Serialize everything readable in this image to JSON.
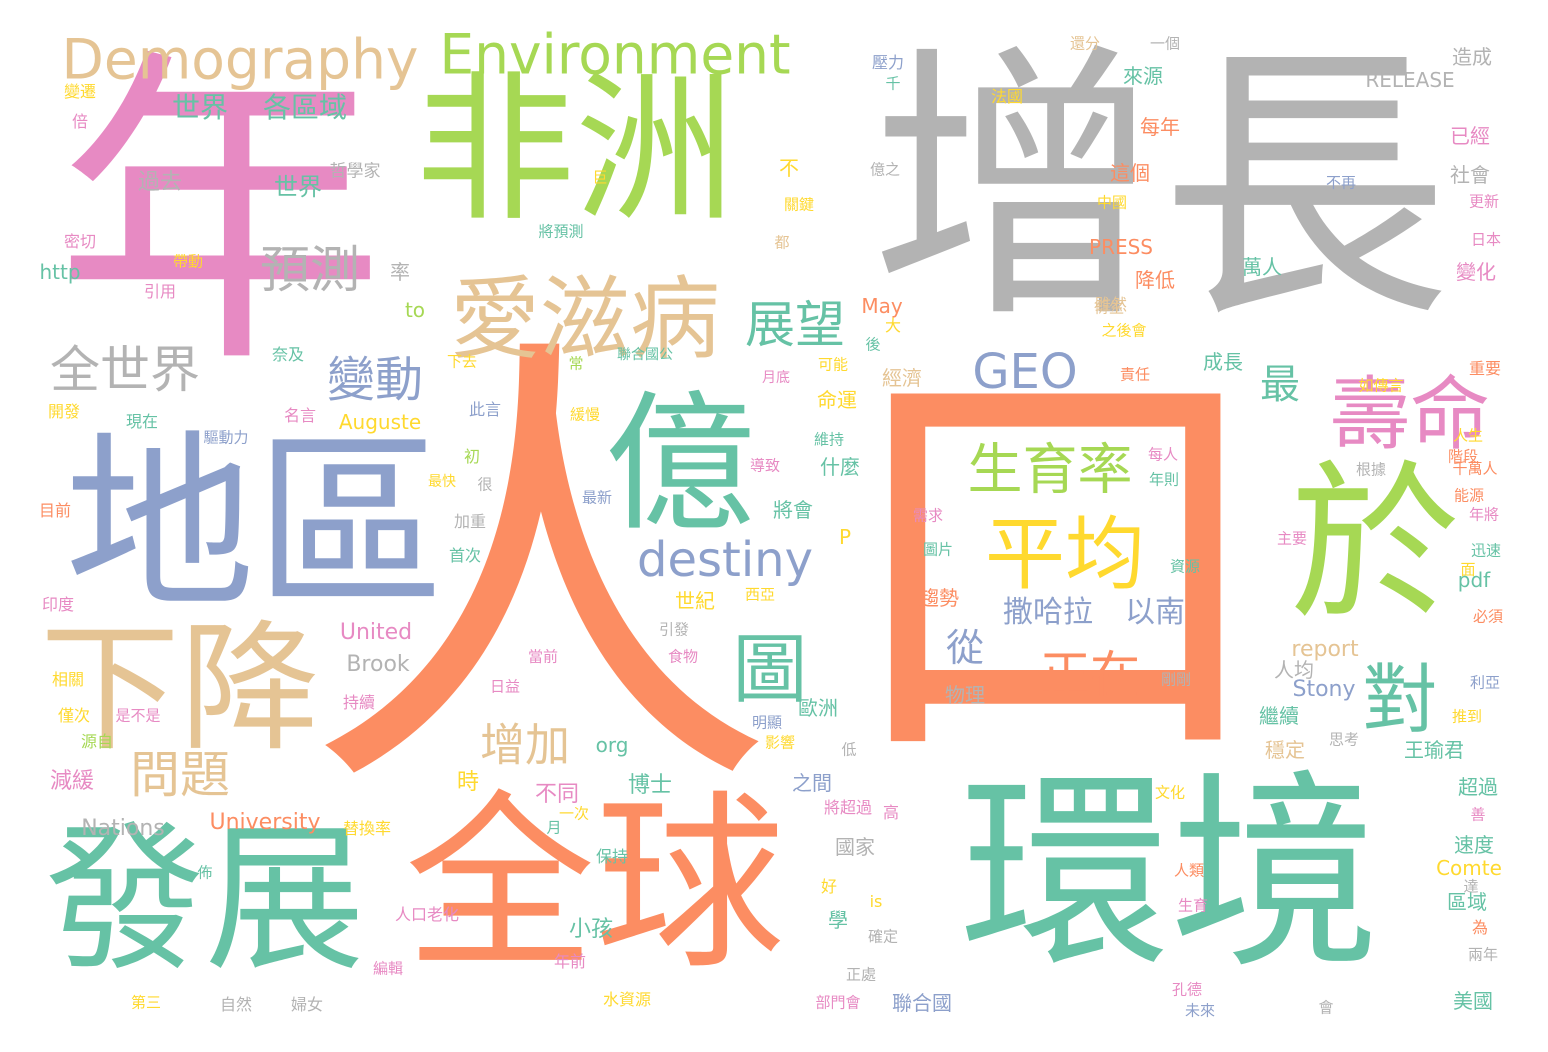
{
  "palette": {
    "teal": "#66c2a5",
    "orange": "#fc8d62",
    "blue": "#8da0cb",
    "pink": "#e78ac3",
    "green": "#a6d854",
    "yellow": "#ffd92f",
    "tan": "#e5c494",
    "gray": "#b3b3b3"
  },
  "words": [
    {
      "text": "人",
      "color": "orange"
    },
    {
      "text": "口",
      "color": "orange"
    },
    {
      "text": "增長",
      "color": "gray"
    },
    {
      "text": "年",
      "color": "pink"
    },
    {
      "text": "非洲",
      "color": "green"
    },
    {
      "text": "地區",
      "color": "blue"
    },
    {
      "text": "環境",
      "color": "teal"
    },
    {
      "text": "全球",
      "color": "orange"
    },
    {
      "text": "發展",
      "color": "teal"
    },
    {
      "text": "億",
      "color": "teal"
    },
    {
      "text": "於",
      "color": "green"
    },
    {
      "text": "下降",
      "color": "tan"
    },
    {
      "text": "愛滋病",
      "color": "tan"
    },
    {
      "text": "平均",
      "color": "yellow"
    },
    {
      "text": "壽命",
      "color": "pink"
    },
    {
      "text": "對",
      "color": "teal"
    },
    {
      "text": "圖",
      "color": "teal"
    },
    {
      "text": "Demography",
      "color": "tan"
    },
    {
      "text": "Environment",
      "color": "green"
    },
    {
      "text": "生育率",
      "color": "green"
    },
    {
      "text": "全世界",
      "color": "gray"
    },
    {
      "text": "預測",
      "color": "gray"
    },
    {
      "text": "展望",
      "color": "teal"
    },
    {
      "text": "變動",
      "color": "blue"
    },
    {
      "text": "GEO",
      "color": "blue"
    },
    {
      "text": "destiny",
      "color": "blue"
    },
    {
      "text": "正在",
      "color": "orange"
    },
    {
      "text": "增加",
      "color": "tan"
    },
    {
      "text": "問題",
      "color": "tan"
    },
    {
      "text": "最",
      "color": "teal"
    },
    {
      "text": "從",
      "color": "blue"
    },
    {
      "text": "撒哈拉",
      "color": "blue"
    },
    {
      "text": "以南",
      "color": "blue"
    },
    {
      "text": "世界",
      "color": "teal"
    },
    {
      "text": "各區域",
      "color": "teal"
    },
    {
      "text": "世界",
      "color": "teal"
    },
    {
      "text": "過去",
      "color": "gray"
    },
    {
      "text": "哲學家",
      "color": "gray"
    },
    {
      "text": "變遷",
      "color": "yellow"
    },
    {
      "text": "倍",
      "color": "pink"
    },
    {
      "text": "密切",
      "color": "pink"
    },
    {
      "text": "http",
      "color": "teal"
    },
    {
      "text": "帶動",
      "color": "yellow"
    },
    {
      "text": "引用",
      "color": "pink"
    },
    {
      "text": "率",
      "color": "gray"
    },
    {
      "text": "to",
      "color": "green"
    },
    {
      "text": "奈及",
      "color": "teal"
    },
    {
      "text": "開發",
      "color": "yellow"
    },
    {
      "text": "現在",
      "color": "teal"
    },
    {
      "text": "名言",
      "color": "pink"
    },
    {
      "text": "Auguste",
      "color": "yellow"
    },
    {
      "text": "驅動力",
      "color": "blue"
    },
    {
      "text": "下去",
      "color": "yellow"
    },
    {
      "text": "聯合國公",
      "color": "teal"
    },
    {
      "text": "此言",
      "color": "blue"
    },
    {
      "text": "初",
      "color": "green"
    },
    {
      "text": "很",
      "color": "gray"
    },
    {
      "text": "最快",
      "color": "yellow"
    },
    {
      "text": "目前",
      "color": "orange"
    },
    {
      "text": "加重",
      "color": "gray"
    },
    {
      "text": "首次",
      "color": "teal"
    },
    {
      "text": "最新",
      "color": "blue"
    },
    {
      "text": "緩慢",
      "color": "yellow"
    },
    {
      "text": "常",
      "color": "green"
    },
    {
      "text": "月底",
      "color": "pink"
    },
    {
      "text": "印度",
      "color": "pink"
    },
    {
      "text": "United",
      "color": "pink"
    },
    {
      "text": "Brook",
      "color": "gray"
    },
    {
      "text": "相關",
      "color": "yellow"
    },
    {
      "text": "持續",
      "color": "pink"
    },
    {
      "text": "僅次",
      "color": "yellow"
    },
    {
      "text": "是不是",
      "color": "pink"
    },
    {
      "text": "源自",
      "color": "green"
    },
    {
      "text": "減緩",
      "color": "pink"
    },
    {
      "text": "Nations",
      "color": "gray"
    },
    {
      "text": "University",
      "color": "orange"
    },
    {
      "text": "替換率",
      "color": "yellow"
    },
    {
      "text": "月",
      "color": "teal"
    },
    {
      "text": "一次",
      "color": "yellow"
    },
    {
      "text": "佈",
      "color": "teal"
    },
    {
      "text": "人口老化",
      "color": "pink"
    },
    {
      "text": "編輯",
      "color": "pink"
    },
    {
      "text": "第三",
      "color": "yellow"
    },
    {
      "text": "自然",
      "color": "gray"
    },
    {
      "text": "婦女",
      "color": "gray"
    },
    {
      "text": "水資源",
      "color": "yellow"
    },
    {
      "text": "年前",
      "color": "pink"
    },
    {
      "text": "小孩",
      "color": "teal"
    },
    {
      "text": "保持",
      "color": "teal"
    },
    {
      "text": "時",
      "color": "yellow"
    },
    {
      "text": "不同",
      "color": "pink"
    },
    {
      "text": "博士",
      "color": "teal"
    },
    {
      "text": "org",
      "color": "teal"
    },
    {
      "text": "日益",
      "color": "pink"
    },
    {
      "text": "當前",
      "color": "pink"
    },
    {
      "text": "食物",
      "color": "pink"
    },
    {
      "text": "引發",
      "color": "gray"
    },
    {
      "text": "世紀",
      "color": "yellow"
    },
    {
      "text": "西亞",
      "color": "yellow"
    },
    {
      "text": "P",
      "color": "yellow"
    },
    {
      "text": "將會",
      "color": "teal"
    },
    {
      "text": "什麼",
      "color": "teal"
    },
    {
      "text": "導致",
      "color": "pink"
    },
    {
      "text": "維持",
      "color": "teal"
    },
    {
      "text": "命運",
      "color": "yellow"
    },
    {
      "text": "可能",
      "color": "yellow"
    },
    {
      "text": "經濟",
      "color": "tan"
    },
    {
      "text": "大",
      "color": "yellow"
    },
    {
      "text": "後",
      "color": "teal"
    },
    {
      "text": "May",
      "color": "orange"
    },
    {
      "text": "歐洲",
      "color": "teal"
    },
    {
      "text": "明顯",
      "color": "blue"
    },
    {
      "text": "影響",
      "color": "yellow"
    },
    {
      "text": "低",
      "color": "gray"
    },
    {
      "text": "之間",
      "color": "blue"
    },
    {
      "text": "將超過",
      "color": "pink"
    },
    {
      "text": "高",
      "color": "pink"
    },
    {
      "text": "國家",
      "color": "gray"
    },
    {
      "text": "好",
      "color": "yellow"
    },
    {
      "text": "學",
      "color": "teal"
    },
    {
      "text": "is",
      "color": "yellow"
    },
    {
      "text": "確定",
      "color": "gray"
    },
    {
      "text": "正處",
      "color": "gray"
    },
    {
      "text": "部門會",
      "color": "pink"
    },
    {
      "text": "聯合國",
      "color": "blue"
    },
    {
      "text": "物理",
      "color": "gray"
    },
    {
      "text": "需求",
      "color": "pink"
    },
    {
      "text": "圖片",
      "color": "teal"
    },
    {
      "text": "趨勢",
      "color": "orange"
    },
    {
      "text": "壓力",
      "color": "blue"
    },
    {
      "text": "千",
      "color": "teal"
    },
    {
      "text": "法國",
      "color": "yellow"
    },
    {
      "text": "億之",
      "color": "gray"
    },
    {
      "text": "不",
      "color": "yellow"
    },
    {
      "text": "關鍵",
      "color": "yellow"
    },
    {
      "text": "巨",
      "color": "yellow"
    },
    {
      "text": "將預測",
      "color": "teal"
    },
    {
      "text": "都",
      "color": "tan"
    },
    {
      "text": "還分",
      "color": "tan"
    },
    {
      "text": "一個",
      "color": "gray"
    },
    {
      "text": "RELEASE",
      "color": "gray"
    },
    {
      "text": "造成",
      "color": "gray"
    },
    {
      "text": "來源",
      "color": "teal"
    },
    {
      "text": "每年",
      "color": "orange"
    },
    {
      "text": "這個",
      "color": "orange"
    },
    {
      "text": "中國",
      "color": "yellow"
    },
    {
      "text": "不再",
      "color": "blue"
    },
    {
      "text": "PRESS",
      "color": "orange"
    },
    {
      "text": "萬人",
      "color": "teal"
    },
    {
      "text": "已經",
      "color": "pink"
    },
    {
      "text": "社會",
      "color": "gray"
    },
    {
      "text": "更新",
      "color": "pink"
    },
    {
      "text": "日本",
      "color": "pink"
    },
    {
      "text": "變化",
      "color": "pink"
    },
    {
      "text": "降低",
      "color": "orange"
    },
    {
      "text": "雖然",
      "color": "tan"
    },
    {
      "text": "之後會",
      "color": "yellow"
    },
    {
      "text": "衍生",
      "color": "tan"
    },
    {
      "text": "責任",
      "color": "orange"
    },
    {
      "text": "如傳言",
      "color": "yellow"
    },
    {
      "text": "成長",
      "color": "teal"
    },
    {
      "text": "重要",
      "color": "orange"
    },
    {
      "text": "人生",
      "color": "yellow"
    },
    {
      "text": "每人",
      "color": "pink"
    },
    {
      "text": "年則",
      "color": "teal"
    },
    {
      "text": "根據",
      "color": "gray"
    },
    {
      "text": "千萬人",
      "color": "orange"
    },
    {
      "text": "能源",
      "color": "orange"
    },
    {
      "text": "年將",
      "color": "pink"
    },
    {
      "text": "階段",
      "color": "orange"
    },
    {
      "text": "主要",
      "color": "pink"
    },
    {
      "text": "迅速",
      "color": "teal"
    },
    {
      "text": "資源",
      "color": "teal"
    },
    {
      "text": "面",
      "color": "yellow"
    },
    {
      "text": "pdf",
      "color": "teal"
    },
    {
      "text": "必須",
      "color": "orange"
    },
    {
      "text": "report",
      "color": "tan"
    },
    {
      "text": "人均",
      "color": "gray"
    },
    {
      "text": "Stony",
      "color": "blue"
    },
    {
      "text": "剛剛",
      "color": "gray"
    },
    {
      "text": "利亞",
      "color": "blue"
    },
    {
      "text": "推到",
      "color": "yellow"
    },
    {
      "text": "繼續",
      "color": "teal"
    },
    {
      "text": "穩定",
      "color": "tan"
    },
    {
      "text": "思考",
      "color": "gray"
    },
    {
      "text": "王瑜君",
      "color": "teal"
    },
    {
      "text": "超過",
      "color": "teal"
    },
    {
      "text": "文化",
      "color": "yellow"
    },
    {
      "text": "善",
      "color": "pink"
    },
    {
      "text": "速度",
      "color": "teal"
    },
    {
      "text": "Comte",
      "color": "yellow"
    },
    {
      "text": "達",
      "color": "gray"
    },
    {
      "text": "人類",
      "color": "orange"
    },
    {
      "text": "生育",
      "color": "pink"
    },
    {
      "text": "區域",
      "color": "teal"
    },
    {
      "text": "為",
      "color": "orange"
    },
    {
      "text": "兩年",
      "color": "gray"
    },
    {
      "text": "孔德",
      "color": "pink"
    },
    {
      "text": "未來",
      "color": "blue"
    },
    {
      "text": "會",
      "color": "gray"
    },
    {
      "text": "美國",
      "color": "teal"
    }
  ]
}
